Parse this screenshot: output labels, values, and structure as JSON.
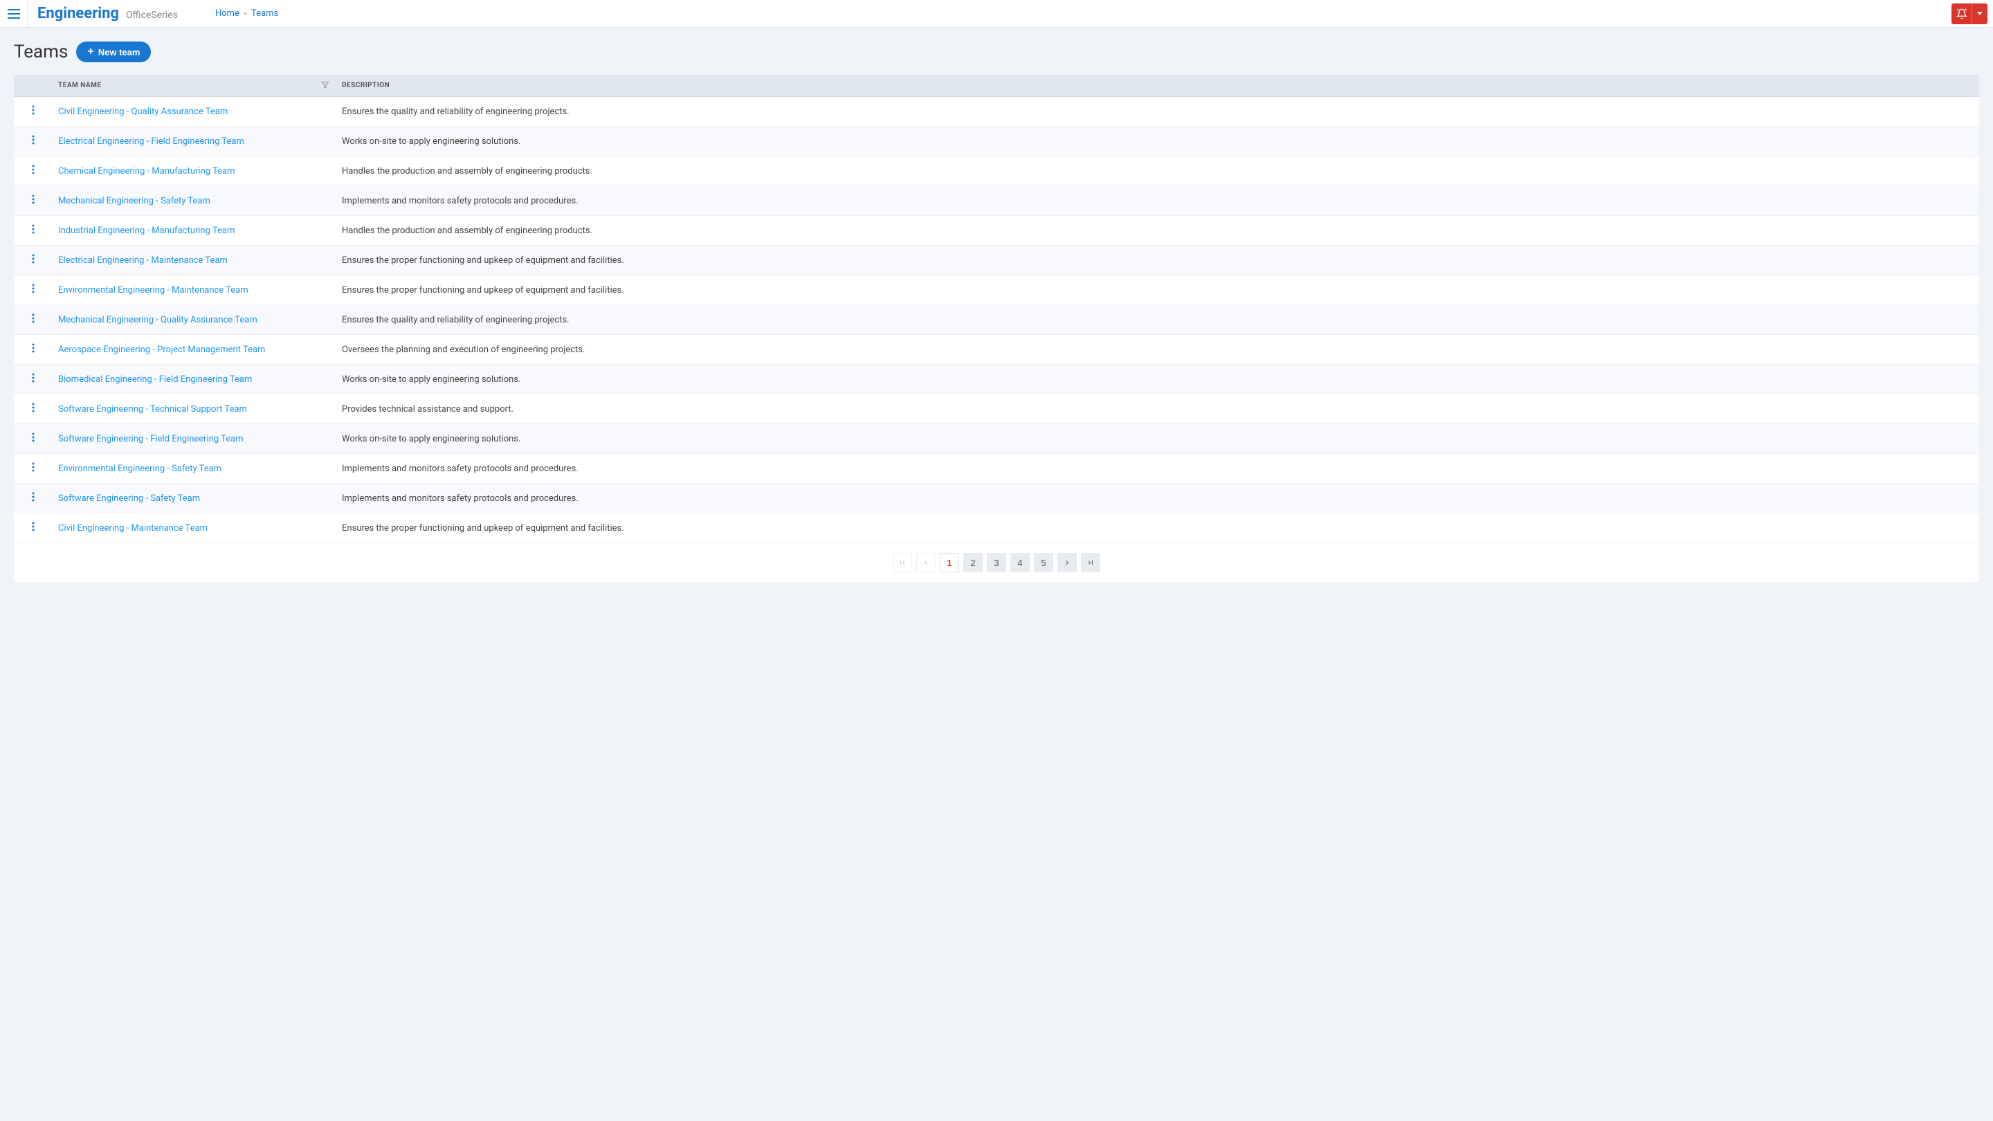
{
  "header": {
    "brand_main": "Engineering",
    "brand_sub": "OfficeSeries",
    "breadcrumb": {
      "home": "Home",
      "current": "Teams"
    }
  },
  "page": {
    "title": "Teams",
    "new_button": "New team"
  },
  "table": {
    "columns": {
      "name": "Team Name",
      "description": "Description"
    },
    "rows": [
      {
        "name": "Civil Engineering - Quality Assurance Team",
        "description": "Ensures the quality and reliability of engineering projects."
      },
      {
        "name": "Electrical Engineering - Field Engineering Team",
        "description": "Works on-site to apply engineering solutions."
      },
      {
        "name": "Chemical Engineering - Manufacturing Team",
        "description": "Handles the production and assembly of engineering products."
      },
      {
        "name": "Mechanical Engineering - Safety Team",
        "description": "Implements and monitors safety protocols and procedures."
      },
      {
        "name": "Industrial Engineering - Manufacturing Team",
        "description": "Handles the production and assembly of engineering products."
      },
      {
        "name": "Electrical Engineering - Maintenance Team",
        "description": "Ensures the proper functioning and upkeep of equipment and facilities."
      },
      {
        "name": "Environmental Engineering - Maintenance Team",
        "description": "Ensures the proper functioning and upkeep of equipment and facilities."
      },
      {
        "name": "Mechanical Engineering - Quality Assurance Team",
        "description": "Ensures the quality and reliability of engineering projects."
      },
      {
        "name": "Aerospace Engineering - Project Management Team",
        "description": "Oversees the planning and execution of engineering projects."
      },
      {
        "name": "Biomedical Engineering - Field Engineering Team",
        "description": "Works on-site to apply engineering solutions."
      },
      {
        "name": "Software Engineering - Technical Support Team",
        "description": "Provides technical assistance and support."
      },
      {
        "name": "Software Engineering - Field Engineering Team",
        "description": "Works on-site to apply engineering solutions."
      },
      {
        "name": "Environmental Engineering - Safety Team",
        "description": "Implements and monitors safety protocols and procedures."
      },
      {
        "name": "Software Engineering - Safety Team",
        "description": "Implements and monitors safety protocols and procedures."
      },
      {
        "name": "Civil Engineering - Maintenance Team",
        "description": "Ensures the proper functioning and upkeep of equipment and facilities."
      }
    ]
  },
  "pagination": {
    "pages": [
      "1",
      "2",
      "3",
      "4",
      "5"
    ],
    "current": "1"
  },
  "colors": {
    "primary": "#1976d2",
    "danger": "#d9362b",
    "bg": "#f0f3f8",
    "header_bg": "#e1e7f0",
    "link": "#2196f3"
  }
}
